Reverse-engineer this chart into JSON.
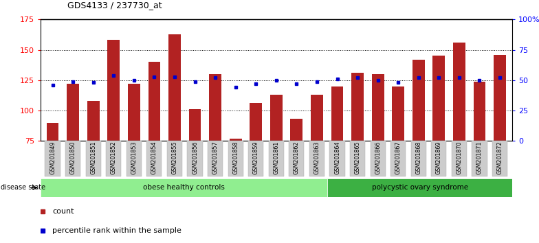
{
  "title": "GDS4133 / 237730_at",
  "samples": [
    "GSM201849",
    "GSM201850",
    "GSM201851",
    "GSM201852",
    "GSM201853",
    "GSM201854",
    "GSM201855",
    "GSM201856",
    "GSM201857",
    "GSM201858",
    "GSM201859",
    "GSM201861",
    "GSM201862",
    "GSM201863",
    "GSM201864",
    "GSM201865",
    "GSM201866",
    "GSM201867",
    "GSM201868",
    "GSM201869",
    "GSM201870",
    "GSM201871",
    "GSM201872"
  ],
  "counts": [
    90,
    122,
    108,
    158,
    122,
    140,
    163,
    101,
    130,
    77,
    106,
    113,
    93,
    113,
    120,
    131,
    130,
    120,
    142,
    145,
    156,
    124,
    146
  ],
  "percentiles": [
    46,
    49,
    48,
    54,
    50,
    53,
    53,
    49,
    52,
    44,
    47,
    50,
    47,
    49,
    51,
    52,
    50,
    48,
    52,
    52,
    52,
    50,
    52
  ],
  "bar_color": "#B22222",
  "percentile_color": "#0000CD",
  "ymin": 75,
  "ymax": 175,
  "yticks_left": [
    75,
    100,
    125,
    150,
    175
  ],
  "yticks_right": [
    0,
    25,
    50,
    75,
    100
  ],
  "yright_labels": [
    "0",
    "25",
    "50",
    "75",
    "100%"
  ],
  "group1_label": "obese healthy controls",
  "group2_label": "polycystic ovary syndrome",
  "group1_count": 14,
  "group2_count": 9,
  "disease_state_label": "disease state",
  "group1_color": "#90EE90",
  "group2_color": "#3CB043",
  "legend_count_label": "count",
  "legend_percentile_label": "percentile rank within the sample",
  "grid_lines": [
    100,
    125,
    150
  ],
  "bar_width": 0.6
}
